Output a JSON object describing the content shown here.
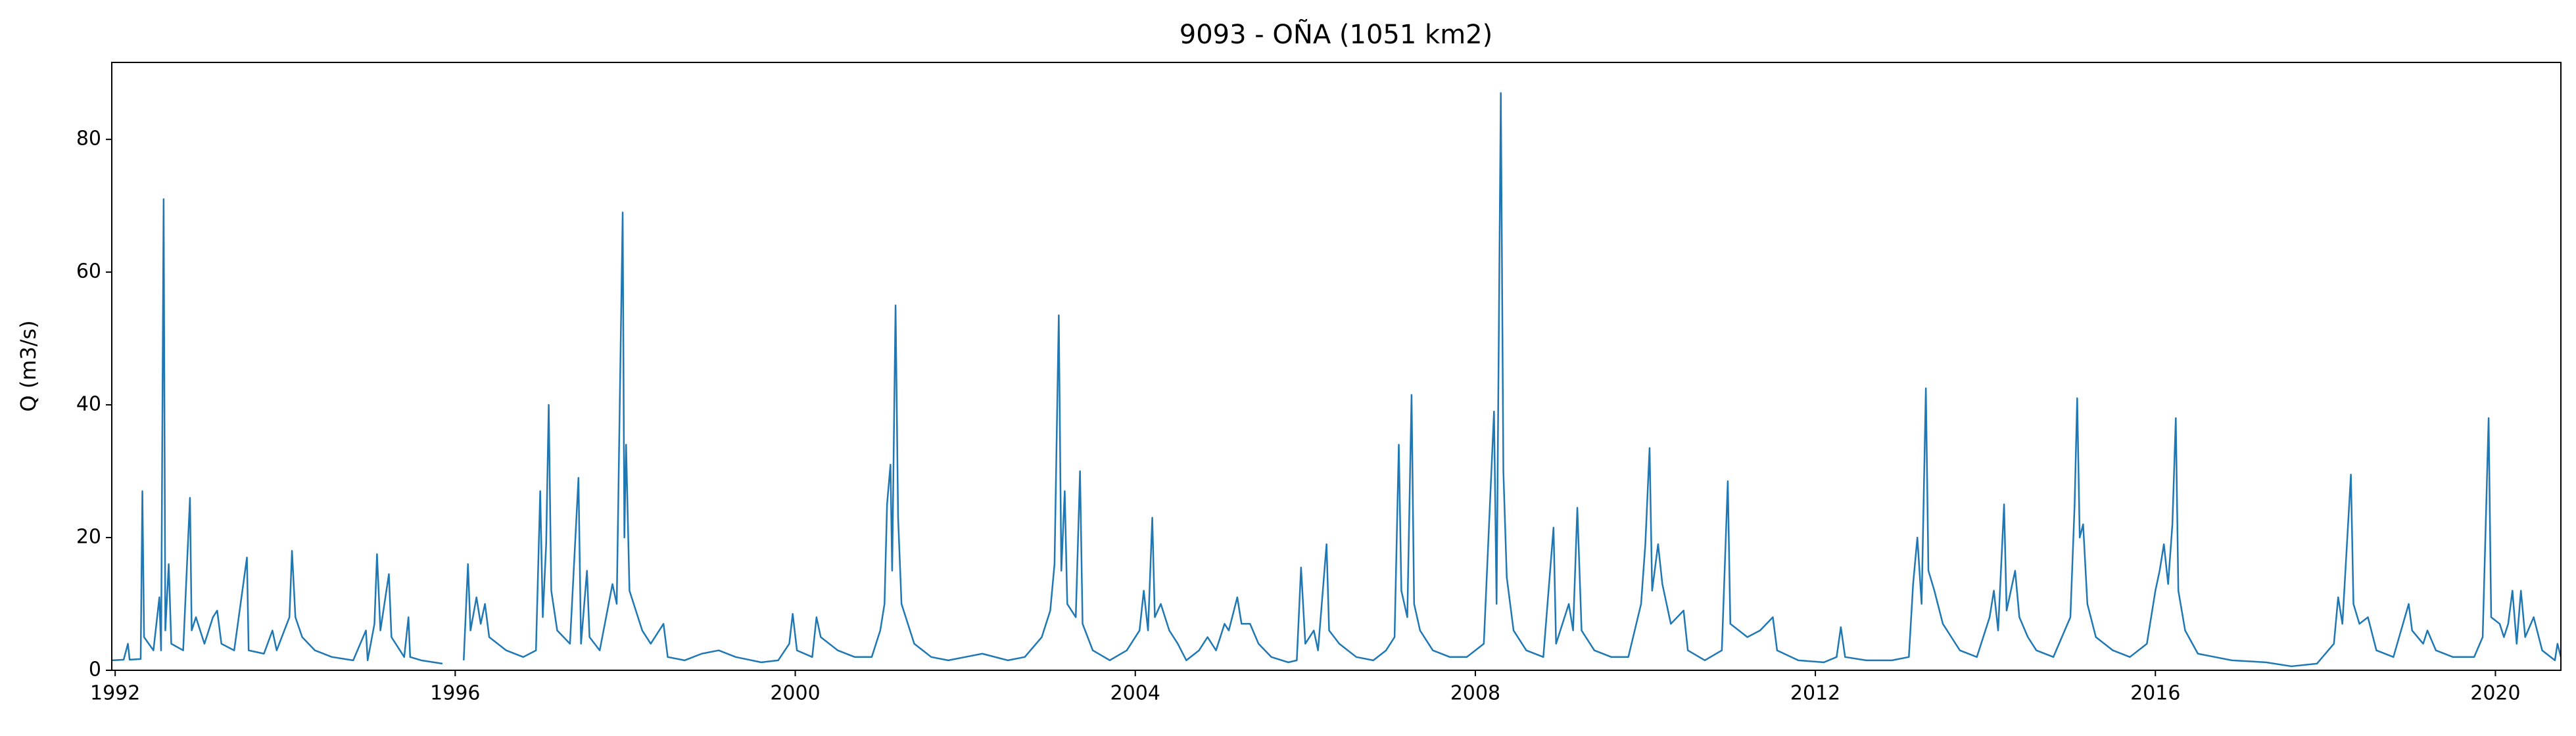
{
  "chart_data": {
    "type": "line",
    "title": "9093 - OÑA (1051 km2)",
    "y_label": "Q (m3/s)",
    "color": "#1f77b4",
    "grid": false,
    "xlim": [
      1991.96,
      2020.77
    ],
    "ylim": [
      0,
      91.6
    ],
    "xticks": [
      1992,
      1996,
      2000,
      2004,
      2008,
      2012,
      2016,
      2020
    ],
    "yticks": [
      0,
      20,
      40,
      60,
      80
    ],
    "x": [
      1991.96,
      1992.1,
      1992.15,
      1992.17,
      1992.3,
      1992.32,
      1992.34,
      1992.45,
      1992.52,
      1992.54,
      1992.57,
      1992.59,
      1992.63,
      1992.66,
      1992.8,
      1992.88,
      1992.9,
      1992.95,
      1993.05,
      1993.15,
      1993.2,
      1993.25,
      1993.4,
      1993.55,
      1993.57,
      1993.75,
      1993.85,
      1993.9,
      1994.05,
      1994.08,
      1994.12,
      1994.2,
      1994.35,
      1994.55,
      1994.8,
      1994.95,
      1994.97,
      1995.05,
      1995.08,
      1995.12,
      1995.22,
      1995.25,
      1995.35,
      1995.4,
      1995.45,
      1995.47,
      1995.6,
      1995.75,
      1995.85,
      1995.95,
      1996.1,
      1996.15,
      1996.18,
      1996.25,
      1996.3,
      1996.35,
      1996.4,
      1996.6,
      1996.8,
      1996.95,
      1997.0,
      1997.03,
      1997.07,
      1997.1,
      1997.13,
      1997.2,
      1997.35,
      1997.45,
      1997.48,
      1997.55,
      1997.58,
      1997.7,
      1997.85,
      1997.9,
      1997.97,
      1997.99,
      1998.01,
      1998.05,
      1998.2,
      1998.3,
      1998.45,
      1998.5,
      1998.7,
      1998.9,
      1999.1,
      1999.3,
      1999.6,
      1999.8,
      1999.93,
      1999.97,
      2000.02,
      2000.2,
      2000.25,
      2000.3,
      2000.5,
      2000.7,
      2000.9,
      2001.0,
      2001.05,
      2001.08,
      2001.12,
      2001.14,
      2001.18,
      2001.21,
      2001.25,
      2001.4,
      2001.6,
      2001.8,
      2002.0,
      2002.2,
      2002.5,
      2002.7,
      2002.9,
      2003.0,
      2003.05,
      2003.1,
      2003.13,
      2003.17,
      2003.2,
      2003.3,
      2003.35,
      2003.38,
      2003.5,
      2003.7,
      2003.9,
      2004.05,
      2004.1,
      2004.15,
      2004.2,
      2004.23,
      2004.3,
      2004.4,
      2004.5,
      2004.6,
      2004.75,
      2004.85,
      2004.95,
      2005.05,
      2005.1,
      2005.2,
      2005.25,
      2005.35,
      2005.45,
      2005.6,
      2005.8,
      2005.9,
      2005.95,
      2006.0,
      2006.1,
      2006.15,
      2006.25,
      2006.28,
      2006.4,
      2006.6,
      2006.8,
      2006.95,
      2007.05,
      2007.1,
      2007.13,
      2007.2,
      2007.25,
      2007.28,
      2007.35,
      2007.5,
      2007.7,
      2007.9,
      2008.1,
      2008.22,
      2008.25,
      2008.3,
      2008.33,
      2008.37,
      2008.45,
      2008.6,
      2008.8,
      2008.92,
      2008.95,
      2009.1,
      2009.15,
      2009.2,
      2009.25,
      2009.4,
      2009.6,
      2009.8,
      2009.95,
      2010.0,
      2010.05,
      2010.08,
      2010.15,
      2010.2,
      2010.3,
      2010.45,
      2010.5,
      2010.7,
      2010.9,
      2010.97,
      2011.0,
      2011.1,
      2011.2,
      2011.35,
      2011.5,
      2011.55,
      2011.8,
      2012.1,
      2012.25,
      2012.3,
      2012.35,
      2012.6,
      2012.9,
      2013.1,
      2013.15,
      2013.2,
      2013.25,
      2013.3,
      2013.33,
      2013.4,
      2013.5,
      2013.6,
      2013.7,
      2013.9,
      2014.05,
      2014.1,
      2014.15,
      2014.22,
      2014.25,
      2014.35,
      2014.4,
      2014.5,
      2014.6,
      2014.8,
      2015.0,
      2015.05,
      2015.08,
      2015.11,
      2015.15,
      2015.2,
      2015.3,
      2015.5,
      2015.7,
      2015.9,
      2016.0,
      2016.05,
      2016.1,
      2016.15,
      2016.2,
      2016.24,
      2016.27,
      2016.35,
      2016.5,
      2016.7,
      2016.9,
      2017.3,
      2017.6,
      2017.9,
      2018.1,
      2018.15,
      2018.2,
      2018.3,
      2018.33,
      2018.4,
      2018.5,
      2018.6,
      2018.8,
      2018.98,
      2019.02,
      2019.15,
      2019.2,
      2019.3,
      2019.5,
      2019.75,
      2019.85,
      2019.92,
      2019.95,
      2020.05,
      2020.1,
      2020.15,
      2020.2,
      2020.25,
      2020.3,
      2020.35,
      2020.45,
      2020.55,
      2020.7,
      2020.73,
      2020.77
    ],
    "values": [
      1.5,
      1.6,
      4,
      1.6,
      1.7,
      27,
      5,
      3,
      11,
      3,
      71,
      6,
      16,
      4,
      3,
      26,
      6,
      8,
      4,
      8,
      9,
      4,
      3,
      17,
      3,
      2.5,
      6,
      3,
      8,
      18,
      8,
      5,
      3,
      2,
      1.5,
      6,
      1.5,
      7,
      17.5,
      6,
      14.5,
      5,
      3,
      2,
      8,
      2,
      1.5,
      1.2,
      1.0,
      null,
      1.5,
      16,
      6,
      11,
      7,
      10,
      5,
      3,
      2,
      3,
      27,
      8,
      19,
      40,
      12,
      6,
      4,
      29,
      4,
      15,
      5,
      3,
      13,
      10,
      69,
      20,
      34,
      12,
      6,
      4,
      7,
      2,
      1.5,
      2.5,
      3,
      2,
      1.2,
      1.5,
      4,
      8.5,
      3,
      2,
      8,
      5,
      3,
      2,
      2,
      6,
      10,
      25,
      31,
      15,
      55,
      23,
      10,
      4,
      2,
      1.5,
      2,
      2.5,
      1.5,
      2,
      5,
      9,
      16,
      53.5,
      15,
      27,
      10,
      8,
      30,
      7,
      3,
      1.5,
      3,
      6,
      12,
      6,
      23,
      8,
      10,
      6,
      4,
      1.5,
      3,
      5,
      3,
      7,
      6,
      11,
      7,
      7,
      4,
      2,
      1.2,
      1.5,
      15.5,
      4,
      6,
      3,
      19,
      6,
      4,
      2,
      1.5,
      3,
      5,
      34,
      12,
      8,
      41.5,
      10,
      6,
      3,
      2,
      2,
      4,
      39,
      10,
      87,
      30,
      14,
      6,
      3,
      2,
      21.5,
      4,
      10,
      6,
      24.5,
      6,
      3,
      2,
      2,
      10,
      19,
      33.5,
      12,
      19,
      13,
      7,
      9,
      3,
      1.5,
      3,
      28.5,
      7,
      6,
      5,
      6,
      8,
      3,
      1.5,
      1.2,
      2,
      6.5,
      2,
      1.5,
      1.5,
      2,
      13,
      20,
      10,
      42.5,
      15,
      12,
      7,
      5,
      3,
      2,
      8,
      12,
      6,
      25,
      9,
      15,
      8,
      5,
      3,
      2,
      8,
      25,
      41,
      20,
      22,
      10,
      5,
      3,
      2,
      4,
      12,
      15,
      19,
      13,
      22,
      38,
      12,
      6,
      2.5,
      2,
      1.5,
      1.2,
      0.6,
      1,
      4,
      11,
      7,
      29.5,
      10,
      7,
      8,
      3,
      2,
      10,
      6,
      4,
      6,
      3,
      2,
      2,
      5,
      38,
      8,
      7,
      5,
      7,
      12,
      4,
      12,
      5,
      8,
      3,
      1.5,
      4,
      2
    ]
  }
}
